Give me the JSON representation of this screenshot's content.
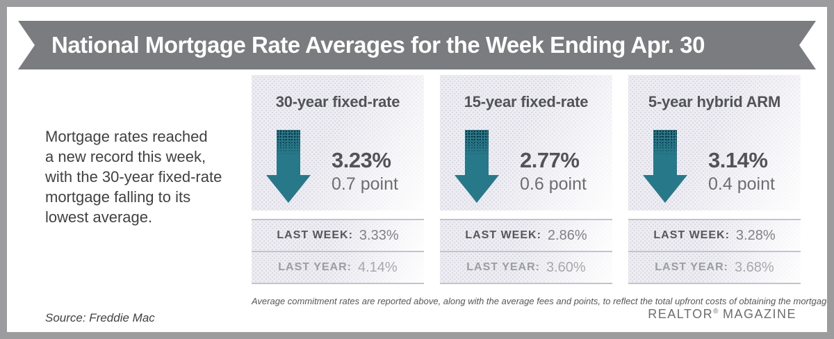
{
  "banner": {
    "title": "National Mortgage Rate Averages for the Week Ending Apr. 30"
  },
  "intro": {
    "text": "Mortgage rates reached\na new record this week,\nwith the 30-year fixed-rate\nmortgage falling to its\nlowest average."
  },
  "chart_data": {
    "type": "table",
    "title": "National Mortgage Rate Averages for the Week Ending Apr. 30",
    "categories": [
      "30-year fixed-rate",
      "15-year fixed-rate",
      "5-year hybrid ARM"
    ],
    "series": [
      {
        "name": "Current rate (%)",
        "values": [
          3.23,
          2.77,
          3.14
        ]
      },
      {
        "name": "Points",
        "values": [
          0.7,
          0.6,
          0.4
        ]
      },
      {
        "name": "Last week (%)",
        "values": [
          3.33,
          2.86,
          3.28
        ]
      },
      {
        "name": "Last year (%)",
        "values": [
          4.14,
          3.6,
          3.68
        ]
      }
    ],
    "trend": "all rates down from last week"
  },
  "columns": [
    {
      "title": "30-year fixed-rate",
      "icon": "down-arrow",
      "rate": "3.23%",
      "point": "0.7 point",
      "last_week_label": "LAST WEEK:",
      "last_week_value": "3.33%",
      "last_year_label": "LAST YEAR:",
      "last_year_value": "4.14%"
    },
    {
      "title": "15-year fixed-rate",
      "icon": "down-arrow",
      "rate": "2.77%",
      "point": "0.6 point",
      "last_week_label": "LAST WEEK:",
      "last_week_value": "2.86%",
      "last_year_label": "LAST YEAR:",
      "last_year_value": "3.60%"
    },
    {
      "title": "5-year hybrid ARM",
      "icon": "down-arrow",
      "rate": "3.14%",
      "point": "0.4 point",
      "last_week_label": "LAST WEEK:",
      "last_week_value": "3.28%",
      "last_year_label": "LAST YEAR:",
      "last_year_value": "3.68%"
    }
  ],
  "footnote": "Average commitment rates are reported above, along with the average fees and points, to reflect the total upfront costs of obtaining the mortgage.",
  "source": "Source: Freddie Mac",
  "branding": {
    "name": "REALTOR",
    "reg": "®",
    "magazine": "MAGAZINE"
  },
  "colors": {
    "arrow_teal": "#27798a",
    "ribbon_gray": "#7b7c7f",
    "frame_gray": "#9c9c9f",
    "panel_lavender": "#ececf2"
  }
}
